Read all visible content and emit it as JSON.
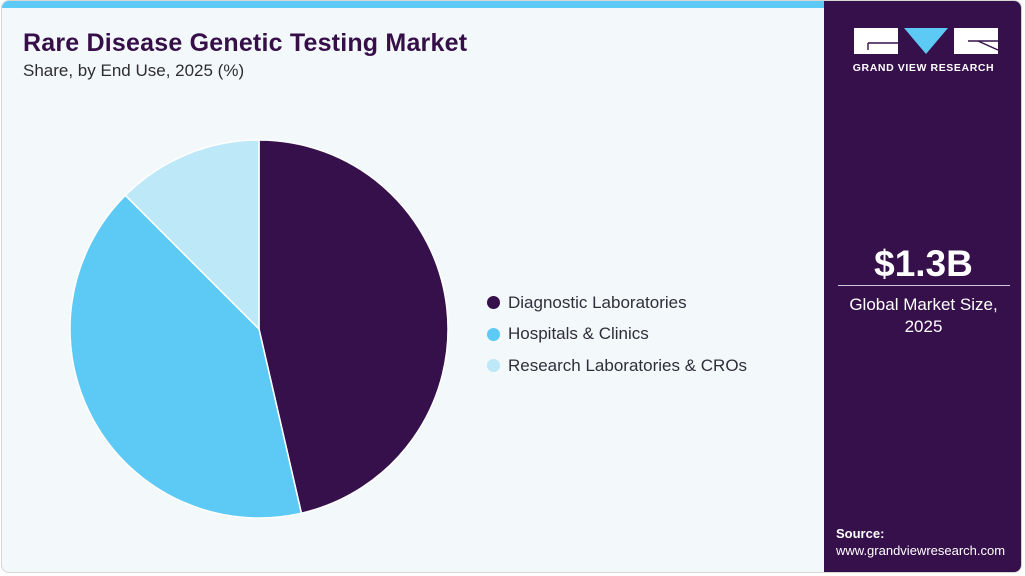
{
  "header": {
    "title": "Rare Disease Genetic Testing Market",
    "subtitle": "Share, by End Use, 2025 (%)"
  },
  "legend": {
    "items": [
      {
        "label": "Diagnostic Laboratories",
        "color": "#36104a"
      },
      {
        "label": "Hospitals & Clinics",
        "color": "#5dc9f5"
      },
      {
        "label": "Research Laboratories & CROs",
        "color": "#bce8f8"
      }
    ]
  },
  "sidebar": {
    "brand": "GRAND VIEW RESEARCH",
    "market_value": "$1.3B",
    "market_label_line1": "Global Market Size,",
    "market_label_line2": "2025",
    "source_title": "Source:",
    "source_url": "www.grandviewresearch.com"
  },
  "colors": {
    "accent": "#5dc9f5",
    "brand_dark": "#36104a",
    "light": "#bce8f8",
    "background": "#f3f8fb"
  },
  "chart_data": {
    "type": "pie",
    "title": "Rare Disease Genetic Testing Market",
    "subtitle": "Share, by End Use, 2025 (%)",
    "categories": [
      "Diagnostic Laboratories",
      "Hospitals & Clinics",
      "Research Laboratories & CROs"
    ],
    "values": [
      46.4,
      41.1,
      12.5
    ],
    "colors": [
      "#36104a",
      "#5dc9f5",
      "#bce8f8"
    ],
    "start_angle_deg": 0,
    "direction": "clockwise",
    "legend_position": "right",
    "annotations": [
      "$1.3B Global Market Size, 2025"
    ]
  }
}
